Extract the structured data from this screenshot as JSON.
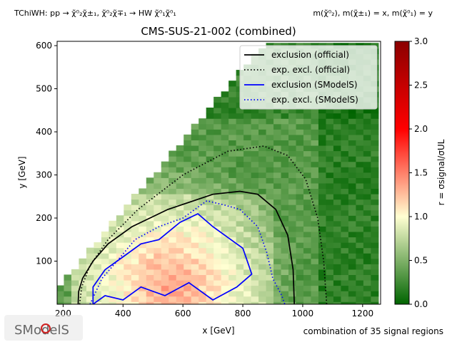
{
  "header": {
    "process": "TChiWH: pp → χ̃⁰₂χ̃±₁, χ̃⁰₂χ̃∓₁ → HW χ̃⁰₁χ̃⁰₁",
    "mass_assign": "m(χ̃⁰₂), m(χ̃±₁) = x, m(χ̃⁰₁) = y"
  },
  "footer": {
    "signal_regions": "combination of 35 signal regions",
    "logo_text": "SModelS"
  },
  "chart_data": {
    "type": "heatmap",
    "title": "CMS-SUS-21-002 (combined)",
    "xlabel": "x [GeV]",
    "ylabel": "y [GeV]",
    "xlim": [
      180,
      1260
    ],
    "ylim": [
      0,
      610
    ],
    "xticks": [
      "200",
      "400",
      "600",
      "800",
      "1000",
      "1200"
    ],
    "yticks": [
      "100",
      "200",
      "300",
      "400",
      "500",
      "600"
    ],
    "colorbar": {
      "label": "r = σsignal/σUL",
      "range": [
        0.0,
        3.0
      ],
      "ticks": [
        "0.0",
        "0.5",
        "1.0",
        "1.5",
        "2.0",
        "2.5",
        "3.0"
      ],
      "colors": [
        "#006400",
        "#ffffd2",
        "#ff0000",
        "#8b0000"
      ]
    },
    "legend": {
      "placement": "top-right",
      "entries": [
        {
          "label": "exclusion (official)",
          "color": "#000000",
          "style": "solid"
        },
        {
          "label": "exp. excl. (official)",
          "color": "#000000",
          "style": "dotted"
        },
        {
          "label": "exclusion (SModelS)",
          "color": "#0000ff",
          "style": "solid"
        },
        {
          "label": "exp. excl. (SModelS)",
          "color": "#0000ff",
          "style": "dotted"
        }
      ]
    },
    "curves": {
      "exclusion_official": [
        [
          250,
          0
        ],
        [
          252,
          30
        ],
        [
          265,
          60
        ],
        [
          300,
          100
        ],
        [
          350,
          140
        ],
        [
          430,
          180
        ],
        [
          550,
          220
        ],
        [
          700,
          255
        ],
        [
          790,
          262
        ],
        [
          850,
          255
        ],
        [
          910,
          220
        ],
        [
          950,
          160
        ],
        [
          968,
          80
        ],
        [
          972,
          0
        ]
      ],
      "exp_excl_official": [
        [
          255,
          0
        ],
        [
          262,
          40
        ],
        [
          290,
          90
        ],
        [
          350,
          150
        ],
        [
          450,
          220
        ],
        [
          600,
          300
        ],
        [
          750,
          355
        ],
        [
          870,
          367
        ],
        [
          950,
          345
        ],
        [
          1010,
          290
        ],
        [
          1050,
          200
        ],
        [
          1070,
          100
        ],
        [
          1080,
          0
        ]
      ],
      "exclusion_smodels": [
        [
          300,
          0
        ],
        [
          340,
          20
        ],
        [
          400,
          10
        ],
        [
          460,
          40
        ],
        [
          540,
          20
        ],
        [
          620,
          50
        ],
        [
          700,
          10
        ],
        [
          780,
          40
        ],
        [
          830,
          70
        ],
        [
          800,
          130
        ],
        [
          760,
          150
        ],
        [
          700,
          180
        ],
        [
          650,
          210
        ],
        [
          590,
          190
        ],
        [
          520,
          150
        ],
        [
          460,
          140
        ],
        [
          400,
          110
        ],
        [
          340,
          80
        ],
        [
          300,
          40
        ],
        [
          300,
          0
        ]
      ],
      "exp_excl_smodels": [
        [
          290,
          0
        ],
        [
          330,
          60
        ],
        [
          380,
          100
        ],
        [
          440,
          150
        ],
        [
          520,
          180
        ],
        [
          600,
          200
        ],
        [
          680,
          240
        ],
        [
          740,
          230
        ],
        [
          790,
          220
        ],
        [
          850,
          180
        ],
        [
          880,
          120
        ],
        [
          900,
          60
        ],
        [
          930,
          20
        ],
        [
          940,
          0
        ]
      ]
    }
  }
}
